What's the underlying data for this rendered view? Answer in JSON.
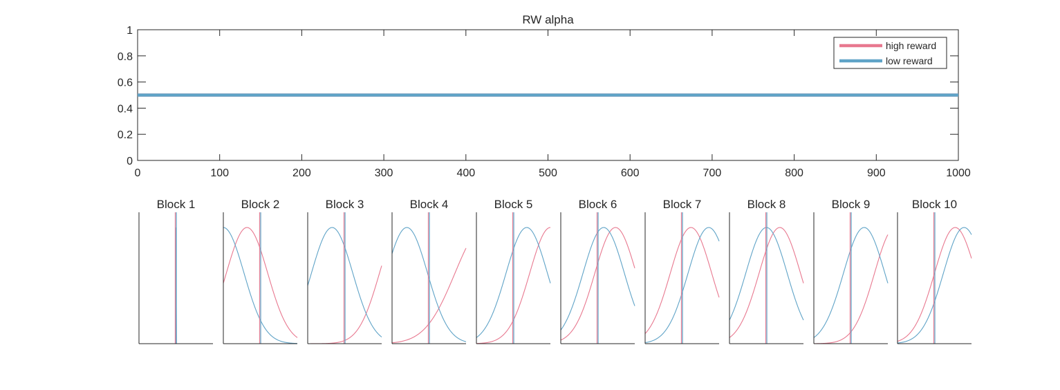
{
  "colors": {
    "high": "#e8788f",
    "low": "#5fa3c7",
    "axis": "#262626",
    "legend_border": "#262626"
  },
  "chart_data": [
    {
      "type": "line",
      "title": "RW  alpha",
      "xlim": [
        0,
        1000
      ],
      "ylim": [
        0,
        1
      ],
      "x_ticks": [
        0,
        100,
        200,
        300,
        400,
        500,
        600,
        700,
        800,
        900,
        1000
      ],
      "y_ticks": [
        0,
        0.2,
        0.4,
        0.6,
        0.8,
        1
      ],
      "legend": {
        "location": "top-right",
        "entries": [
          "high reward",
          "low reward"
        ]
      },
      "series": [
        {
          "name": "high reward",
          "color": "#e8788f",
          "x": [
            0,
            1000
          ],
          "y": [
            0.5,
            0.5
          ]
        },
        {
          "name": "low reward",
          "color": "#5fa3c7",
          "x": [
            0,
            1000
          ],
          "y": [
            0.5,
            0.5
          ]
        }
      ]
    },
    {
      "type": "line",
      "description_kind": "small-multiples",
      "xlim": [
        0,
        1
      ],
      "ylim": [
        0,
        1
      ],
      "vertical_line_x": 0.5,
      "blocks": [
        {
          "title": "Block 1",
          "high": {
            "mu": 0.5,
            "sigma": 0.001
          },
          "low": {
            "mu": 0.5,
            "sigma": 0.001
          }
        },
        {
          "title": "Block 2",
          "high": {
            "mu": 0.32,
            "sigma": 0.28
          },
          "low": {
            "mu": 0.0,
            "sigma": 0.28
          }
        },
        {
          "title": "Block 3",
          "high": {
            "mu": 1.25,
            "sigma": 0.28
          },
          "low": {
            "mu": 0.33,
            "sigma": 0.28
          }
        },
        {
          "title": "Block 4",
          "high": {
            "mu": 1.25,
            "sigma": 0.4
          },
          "low": {
            "mu": 0.2,
            "sigma": 0.28
          }
        },
        {
          "title": "Block 5",
          "high": {
            "mu": 1.0,
            "sigma": 0.28
          },
          "low": {
            "mu": 0.68,
            "sigma": 0.28
          }
        },
        {
          "title": "Block 6",
          "high": {
            "mu": 0.74,
            "sigma": 0.28
          },
          "low": {
            "mu": 0.58,
            "sigma": 0.28
          }
        },
        {
          "title": "Block 7",
          "high": {
            "mu": 0.62,
            "sigma": 0.28
          },
          "low": {
            "mu": 0.86,
            "sigma": 0.28
          }
        },
        {
          "title": "Block 8",
          "high": {
            "mu": 0.68,
            "sigma": 0.28
          },
          "low": {
            "mu": 0.5,
            "sigma": 0.28
          }
        },
        {
          "title": "Block 9",
          "high": {
            "mu": 1.1,
            "sigma": 0.28
          },
          "low": {
            "mu": 0.68,
            "sigma": 0.28
          }
        },
        {
          "title": "Block 10",
          "high": {
            "mu": 0.78,
            "sigma": 0.28
          },
          "low": {
            "mu": 0.9,
            "sigma": 0.28
          }
        }
      ]
    }
  ]
}
